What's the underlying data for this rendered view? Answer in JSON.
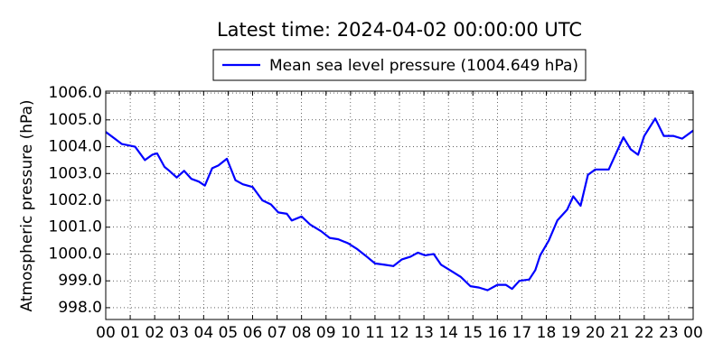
{
  "chart_data": {
    "type": "line",
    "title": "Latest time: 2024-04-02 00:00:00 UTC",
    "y_label": "Atmospheric pressure (hPa)",
    "legend": "upper center",
    "grid": true,
    "x": [
      0,
      0.66,
      1.2,
      1.6,
      1.9,
      2.1,
      2.4,
      2.6,
      2.9,
      3.2,
      3.5,
      3.8,
      4.05,
      4.35,
      4.6,
      4.95,
      5.3,
      5.6,
      6.0,
      6.4,
      6.75,
      7.05,
      7.4,
      7.6,
      8.0,
      8.35,
      8.8,
      9.15,
      9.5,
      9.9,
      10.25,
      10.6,
      11.0,
      11.4,
      11.75,
      12.1,
      12.45,
      12.75,
      13.05,
      13.4,
      13.7,
      14.15,
      14.5,
      14.9,
      15.25,
      15.6,
      16.0,
      16.35,
      16.6,
      16.9,
      17.3,
      17.55,
      17.75,
      18.1,
      18.45,
      18.85,
      19.1,
      19.4,
      19.7,
      20.0,
      20.3,
      20.55,
      20.85,
      21.15,
      21.45,
      21.75,
      22.0,
      22.45,
      22.8,
      23.2,
      23.55,
      24.0
    ],
    "series": [
      {
        "name": "Mean sea level pressure (1004.649 hPa)",
        "color": "#0000ff",
        "values": [
          1004.55,
          1004.1,
          1004.0,
          1003.5,
          1003.7,
          1003.75,
          1003.25,
          1003.1,
          1002.85,
          1003.1,
          1002.8,
          1002.7,
          1002.55,
          1003.2,
          1003.3,
          1003.55,
          1002.75,
          1002.6,
          1002.5,
          1002.0,
          1001.85,
          1001.55,
          1001.5,
          1001.25,
          1001.4,
          1001.1,
          1000.85,
          1000.6,
          1000.55,
          1000.4,
          1000.2,
          999.95,
          999.65,
          999.6,
          999.55,
          999.8,
          999.9,
          1000.05,
          999.95,
          1000.0,
          999.6,
          999.35,
          999.15,
          998.8,
          998.75,
          998.65,
          998.85,
          998.85,
          998.7,
          999.0,
          999.05,
          999.4,
          999.95,
          1000.5,
          1001.25,
          1001.65,
          1002.15,
          1001.8,
          1002.95,
          1003.15,
          1003.15,
          1003.15,
          1003.75,
          1004.35,
          1003.9,
          1003.7,
          1004.4,
          1005.05,
          1004.4,
          1004.4,
          1004.3,
          1004.6
        ]
      }
    ],
    "xlim": [
      0,
      24
    ],
    "xticks": [
      {
        "value": 0,
        "label": "00"
      },
      {
        "value": 1,
        "label": "01"
      },
      {
        "value": 2,
        "label": "02"
      },
      {
        "value": 3,
        "label": "03"
      },
      {
        "value": 4,
        "label": "04"
      },
      {
        "value": 5,
        "label": "05"
      },
      {
        "value": 6,
        "label": "06"
      },
      {
        "value": 7,
        "label": "07"
      },
      {
        "value": 8,
        "label": "08"
      },
      {
        "value": 9,
        "label": "09"
      },
      {
        "value": 10,
        "label": "10"
      },
      {
        "value": 11,
        "label": "11"
      },
      {
        "value": 12,
        "label": "12"
      },
      {
        "value": 13,
        "label": "13"
      },
      {
        "value": 14,
        "label": "14"
      },
      {
        "value": 15,
        "label": "15"
      },
      {
        "value": 16,
        "label": "16"
      },
      {
        "value": 17,
        "label": "17"
      },
      {
        "value": 18,
        "label": "18"
      },
      {
        "value": 19,
        "label": "19"
      },
      {
        "value": 20,
        "label": "20"
      },
      {
        "value": 21,
        "label": "21"
      },
      {
        "value": 22,
        "label": "22"
      },
      {
        "value": 23,
        "label": "23"
      },
      {
        "value": 24,
        "label": "00"
      }
    ],
    "ylim": [
      997.56,
      1006.07
    ],
    "yticks": [
      {
        "value": 998,
        "label": "998.0"
      },
      {
        "value": 999,
        "label": "999.0"
      },
      {
        "value": 1000,
        "label": "1000.0"
      },
      {
        "value": 1001,
        "label": "1001.0"
      },
      {
        "value": 1002,
        "label": "1002.0"
      },
      {
        "value": 1003,
        "label": "1003.0"
      },
      {
        "value": 1004,
        "label": "1004.0"
      },
      {
        "value": 1005,
        "label": "1005.0"
      },
      {
        "value": 1006,
        "label": "1006.0"
      }
    ]
  }
}
